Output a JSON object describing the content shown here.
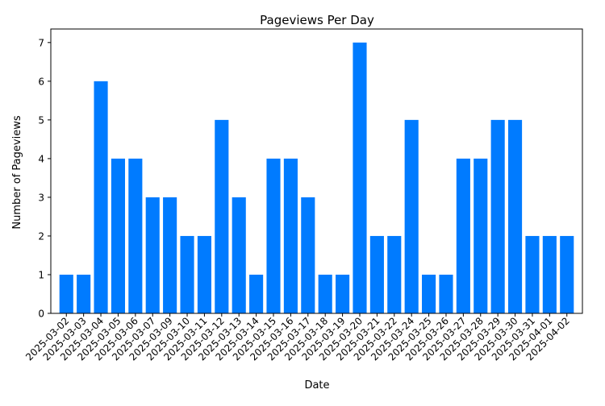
{
  "chart_data": {
    "type": "bar",
    "title": "Pageviews Per Day",
    "xlabel": "Date",
    "ylabel": "Number of Pageviews",
    "ylim": [
      0,
      7.35
    ],
    "yticks": [
      0,
      1,
      2,
      3,
      4,
      5,
      6,
      7
    ],
    "grid": false,
    "bar_color": "#007bff",
    "categories": [
      "2025-03-02",
      "2025-03-03",
      "2025-03-04",
      "2025-03-05",
      "2025-03-06",
      "2025-03-07",
      "2025-03-09",
      "2025-03-10",
      "2025-03-11",
      "2025-03-12",
      "2025-03-13",
      "2025-03-14",
      "2025-03-15",
      "2025-03-16",
      "2025-03-17",
      "2025-03-18",
      "2025-03-19",
      "2025-03-20",
      "2025-03-21",
      "2025-03-22",
      "2025-03-24",
      "2025-03-25",
      "2025-03-26",
      "2025-03-27",
      "2025-03-28",
      "2025-03-29",
      "2025-03-30",
      "2025-03-31",
      "2025-04-01",
      "2025-04-02"
    ],
    "values": [
      1,
      1,
      6,
      4,
      4,
      3,
      3,
      2,
      2,
      5,
      3,
      1,
      4,
      4,
      3,
      1,
      1,
      7,
      2,
      2,
      5,
      1,
      1,
      4,
      4,
      5,
      5,
      2,
      2,
      2
    ]
  }
}
